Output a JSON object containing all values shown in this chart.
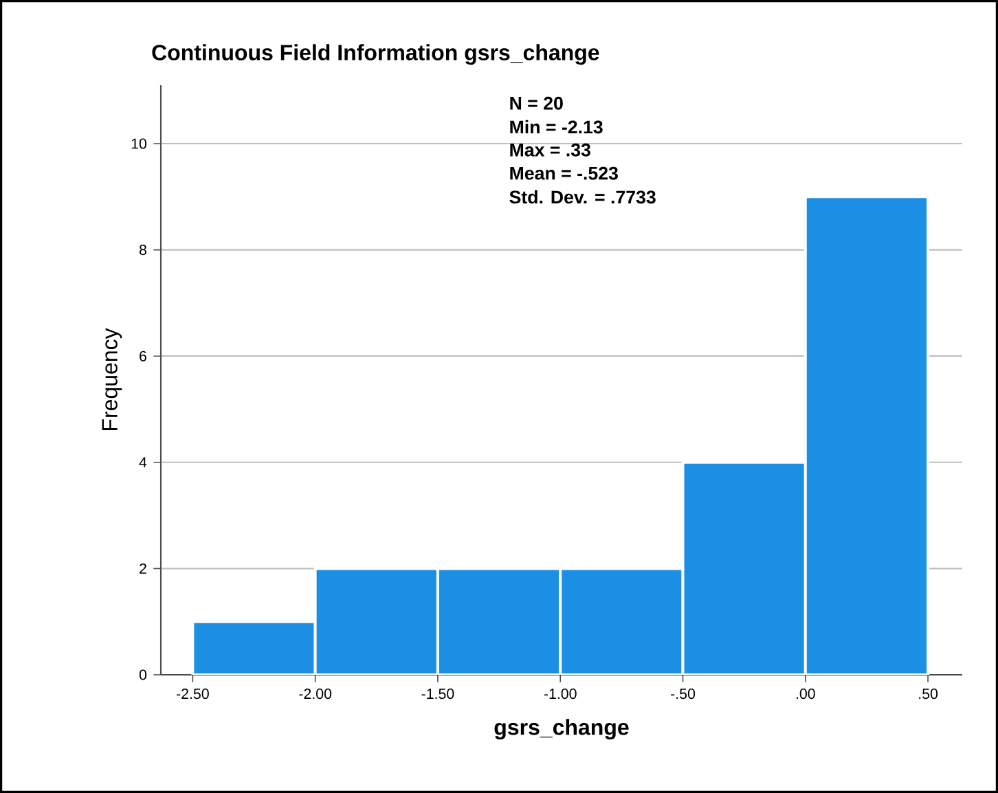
{
  "chart_data": {
    "type": "histogram",
    "title": "Continuous Field Information gsrs_change",
    "xlabel": "gsrs_change",
    "ylabel": "Frequency",
    "bins": [
      -2.5,
      -2.0,
      -1.5,
      -1.0,
      -0.5,
      0.0,
      0.5
    ],
    "values": [
      1,
      2,
      2,
      2,
      4,
      9
    ],
    "color": "#1a8fe3",
    "xlim": [
      -2.63,
      0.64
    ],
    "xticks": [
      {
        "value": -2.5,
        "label": "-2.50"
      },
      {
        "value": -2.0,
        "label": "-2.00"
      },
      {
        "value": -1.5,
        "label": "-1.50"
      },
      {
        "value": -1.0,
        "label": "-1.00"
      },
      {
        "value": -0.5,
        "label": "-.50"
      },
      {
        "value": 0.0,
        "label": ".00"
      },
      {
        "value": 0.5,
        "label": ".50"
      }
    ],
    "ylim": [
      0,
      11.1
    ],
    "yticks": [
      0,
      2,
      4,
      6,
      8,
      10
    ],
    "grid": "y",
    "annotations": [
      "N = 20",
      "Min = -2.13",
      "Max = .33",
      "Mean = -.523",
      "Std. Dev. = .7733"
    ]
  }
}
